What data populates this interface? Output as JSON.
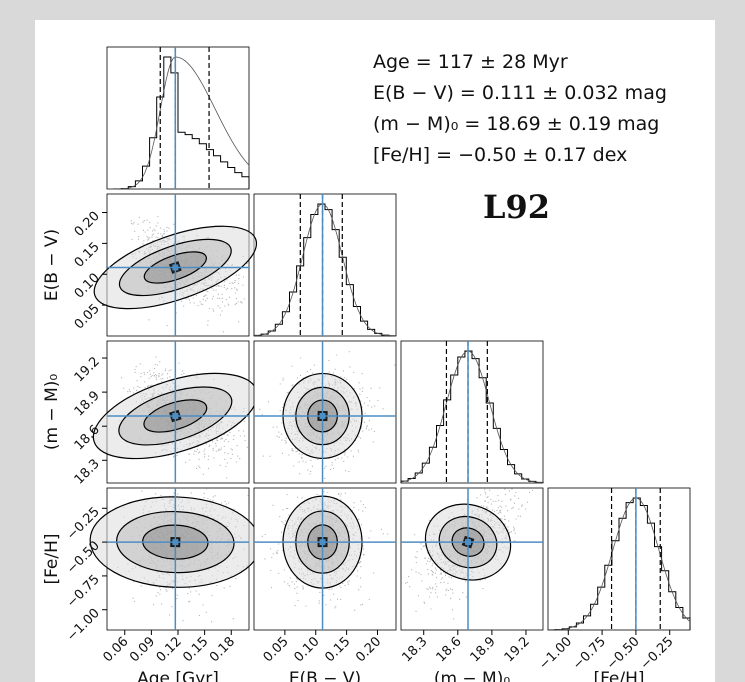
{
  "annotations": {
    "age": "Age = 117 ± 28 Myr",
    "ebv": "E(B − V) = 0.111 ± 0.032 mag",
    "dm": "(m − M)₀ = 18.69 ± 0.19 mag",
    "feh": "[Fe/H] = −0.50 ± 0.17 dex"
  },
  "cluster_name": "L92",
  "colors": {
    "background": "#d9d9d9",
    "panel": "#ffffff",
    "truth": "#4c8dc4",
    "hist": "#000000",
    "quantile": "#000000"
  },
  "chart_data": {
    "type": "corner",
    "params": [
      {
        "key": "age",
        "label": "Age [Gyr]",
        "range": [
          0.04,
          0.2
        ],
        "ticks": [
          "0.06",
          "0.09",
          "0.12",
          "0.15",
          "0.18"
        ],
        "tick_values": [
          0.06,
          0.09,
          0.12,
          0.15,
          0.18
        ],
        "median": 0.117,
        "sigma": 0.028,
        "quantiles": [
          0.1,
          0.117,
          0.155
        ]
      },
      {
        "key": "ebv",
        "label": "E(B − V)",
        "range": [
          0.0,
          0.23
        ],
        "ticks": [
          "0.05",
          "0.10",
          "0.15",
          "0.20"
        ],
        "tick_values": [
          0.05,
          0.1,
          0.15,
          0.2
        ],
        "median": 0.111,
        "sigma": 0.032,
        "quantiles": [
          0.075,
          0.111,
          0.143
        ]
      },
      {
        "key": "dm",
        "label": "(m − M)₀",
        "range": [
          18.1,
          19.35
        ],
        "ticks": [
          "18.3",
          "18.6",
          "18.9",
          "19.2"
        ],
        "tick_values": [
          18.3,
          18.6,
          18.9,
          19.2
        ],
        "median": 18.69,
        "sigma": 0.19,
        "quantiles": [
          18.5,
          18.69,
          18.86
        ]
      },
      {
        "key": "feh",
        "label": "[Fe/H]",
        "range": [
          -1.15,
          -0.1
        ],
        "ticks": [
          "−1.00",
          "−0.75",
          "−0.50",
          "−0.25"
        ],
        "tick_values": [
          -1.0,
          -0.75,
          -0.5,
          -0.25
        ],
        "median": -0.5,
        "sigma": 0.17,
        "quantiles": [
          -0.68,
          -0.5,
          -0.32
        ]
      }
    ],
    "truths": [
      0.117,
      0.111,
      18.69,
      -0.5
    ],
    "correlations": [
      [
        1,
        -0.55,
        -0.5,
        0.05
      ],
      [
        -0.55,
        1,
        0.05,
        0.0
      ],
      [
        -0.5,
        0.05,
        1,
        0.55
      ],
      [
        0.05,
        0.0,
        0.55,
        1
      ]
    ]
  }
}
